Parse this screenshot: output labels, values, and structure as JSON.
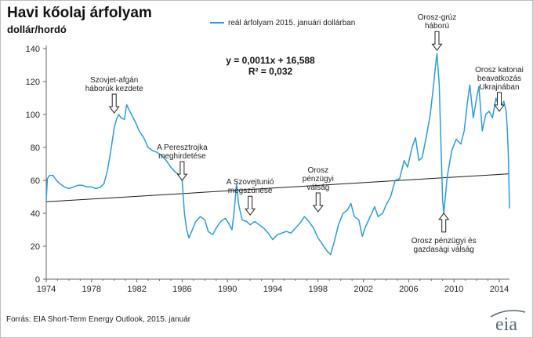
{
  "header": {
    "title": "Havi kőolaj árfolyam",
    "unit": "dollár/hordó"
  },
  "source": "Forrás: EIA Short-Term  Energy Outlook, 2015. január",
  "logo_text": "eia",
  "colors": {
    "series": "#2e9bd4",
    "trend": "#1a1a1a",
    "axis": "#666666",
    "logo": "#5a6a74"
  },
  "chart_data": {
    "type": "line",
    "title": "Havi kőolaj árfolyam",
    "ylabel": "dollár/hordó",
    "xlabel": "",
    "xlim": [
      1974,
      2014.9
    ],
    "ylim": [
      0,
      140
    ],
    "yticks": [
      0,
      20,
      40,
      60,
      80,
      100,
      120,
      140
    ],
    "xticks": [
      1974,
      1978,
      1982,
      1986,
      1990,
      1994,
      1998,
      2002,
      2006,
      2010,
      2014
    ],
    "grid": false,
    "legend_position": "top-center",
    "series": [
      {
        "name": "reál árfolyam 2015. januári dollárban",
        "points": [
          [
            1974.0,
            48
          ],
          [
            1974.1,
            61
          ],
          [
            1974.3,
            63
          ],
          [
            1974.6,
            63
          ],
          [
            1974.9,
            60
          ],
          [
            1975.2,
            58
          ],
          [
            1975.6,
            56
          ],
          [
            1976.0,
            55
          ],
          [
            1976.4,
            56
          ],
          [
            1976.8,
            57
          ],
          [
            1977.2,
            57
          ],
          [
            1977.6,
            56
          ],
          [
            1978.0,
            56
          ],
          [
            1978.4,
            55
          ],
          [
            1978.8,
            56
          ],
          [
            1979.1,
            58
          ],
          [
            1979.4,
            66
          ],
          [
            1979.7,
            78
          ],
          [
            1980.0,
            92
          ],
          [
            1980.2,
            97
          ],
          [
            1980.4,
            100
          ],
          [
            1980.6,
            98
          ],
          [
            1980.9,
            97
          ],
          [
            1981.1,
            106
          ],
          [
            1981.3,
            103
          ],
          [
            1981.6,
            99
          ],
          [
            1981.9,
            95
          ],
          [
            1982.2,
            90
          ],
          [
            1982.6,
            86
          ],
          [
            1983.0,
            80
          ],
          [
            1983.4,
            78
          ],
          [
            1983.8,
            77
          ],
          [
            1984.2,
            75
          ],
          [
            1984.6,
            72
          ],
          [
            1985.0,
            68
          ],
          [
            1985.4,
            65
          ],
          [
            1985.8,
            63
          ],
          [
            1986.0,
            60
          ],
          [
            1986.2,
            40
          ],
          [
            1986.4,
            30
          ],
          [
            1986.6,
            25
          ],
          [
            1986.9,
            30
          ],
          [
            1987.2,
            35
          ],
          [
            1987.6,
            38
          ],
          [
            1988.0,
            36
          ],
          [
            1988.3,
            29
          ],
          [
            1988.7,
            27
          ],
          [
            1989.0,
            31
          ],
          [
            1989.4,
            35
          ],
          [
            1989.8,
            37
          ],
          [
            1990.1,
            34
          ],
          [
            1990.4,
            30
          ],
          [
            1990.6,
            42
          ],
          [
            1990.8,
            58
          ],
          [
            1991.0,
            45
          ],
          [
            1991.3,
            36
          ],
          [
            1991.7,
            35
          ],
          [
            1992.0,
            33
          ],
          [
            1992.4,
            35
          ],
          [
            1992.8,
            33
          ],
          [
            1993.2,
            31
          ],
          [
            1993.6,
            28
          ],
          [
            1994.0,
            24
          ],
          [
            1994.4,
            27
          ],
          [
            1994.8,
            28
          ],
          [
            1995.2,
            29
          ],
          [
            1995.6,
            28
          ],
          [
            1996.0,
            31
          ],
          [
            1996.4,
            34
          ],
          [
            1996.8,
            38
          ],
          [
            1997.2,
            35
          ],
          [
            1997.6,
            31
          ],
          [
            1998.0,
            25
          ],
          [
            1998.4,
            21
          ],
          [
            1998.8,
            17
          ],
          [
            1999.1,
            15
          ],
          [
            1999.4,
            22
          ],
          [
            1999.8,
            33
          ],
          [
            2000.2,
            40
          ],
          [
            2000.6,
            42
          ],
          [
            2000.9,
            46
          ],
          [
            2001.2,
            38
          ],
          [
            2001.6,
            36
          ],
          [
            2001.9,
            26
          ],
          [
            2002.2,
            32
          ],
          [
            2002.6,
            38
          ],
          [
            2003.0,
            44
          ],
          [
            2003.3,
            38
          ],
          [
            2003.7,
            40
          ],
          [
            2004.0,
            45
          ],
          [
            2004.4,
            50
          ],
          [
            2004.8,
            60
          ],
          [
            2005.2,
            61
          ],
          [
            2005.6,
            72
          ],
          [
            2005.9,
            68
          ],
          [
            2006.3,
            80
          ],
          [
            2006.6,
            86
          ],
          [
            2006.9,
            72
          ],
          [
            2007.2,
            74
          ],
          [
            2007.6,
            88
          ],
          [
            2007.9,
            100
          ],
          [
            2008.2,
            118
          ],
          [
            2008.4,
            132
          ],
          [
            2008.5,
            137
          ],
          [
            2008.7,
            118
          ],
          [
            2008.9,
            70
          ],
          [
            2009.0,
            48
          ],
          [
            2009.1,
            40
          ],
          [
            2009.4,
            62
          ],
          [
            2009.8,
            78
          ],
          [
            2010.2,
            85
          ],
          [
            2010.6,
            82
          ],
          [
            2010.9,
            90
          ],
          [
            2011.2,
            108
          ],
          [
            2011.4,
            118
          ],
          [
            2011.7,
            98
          ],
          [
            2012.0,
            110
          ],
          [
            2012.2,
            117
          ],
          [
            2012.5,
            90
          ],
          [
            2012.8,
            100
          ],
          [
            2013.1,
            102
          ],
          [
            2013.4,
            98
          ],
          [
            2013.7,
            110
          ],
          [
            2013.9,
            106
          ],
          [
            2014.1,
            104
          ],
          [
            2014.4,
            108
          ],
          [
            2014.6,
            102
          ],
          [
            2014.7,
            92
          ],
          [
            2014.8,
            75
          ],
          [
            2014.9,
            43
          ]
        ]
      }
    ],
    "trendline": {
      "equation": "y = 0,0011x + 16,588",
      "r_squared": "R² = 0,032",
      "start": [
        1974,
        47
      ],
      "end": [
        2014.9,
        64
      ]
    },
    "annotations": [
      {
        "lines": [
          "Szovjet-afgán",
          "háborúk kezdete"
        ],
        "x": 1980.0,
        "y": 100,
        "direction": "down"
      },
      {
        "lines": [
          "A Peresztrojka",
          "meghirdetése"
        ],
        "x": 1986.0,
        "y": 59,
        "direction": "down"
      },
      {
        "lines": [
          "A Szovejtunió",
          "megszűnése"
        ],
        "x": 1992.0,
        "y": 38,
        "direction": "down"
      },
      {
        "lines": [
          "Orosz",
          "pénzügyi",
          "válság"
        ],
        "x": 1998.0,
        "y": 40,
        "direction": "down"
      },
      {
        "lines": [
          "Orosz-grúz",
          "háború"
        ],
        "x": 2008.5,
        "y": 138,
        "direction": "down"
      },
      {
        "lines": [
          "Orosz katonai",
          "beavatkozás",
          "Ukrajnában"
        ],
        "x": 2014.0,
        "y": 101,
        "direction": "down"
      },
      {
        "lines": [
          "Orosz pénzügyi és",
          "gazdasági válság"
        ],
        "x": 2009.1,
        "y": 41,
        "direction": "up"
      }
    ]
  }
}
